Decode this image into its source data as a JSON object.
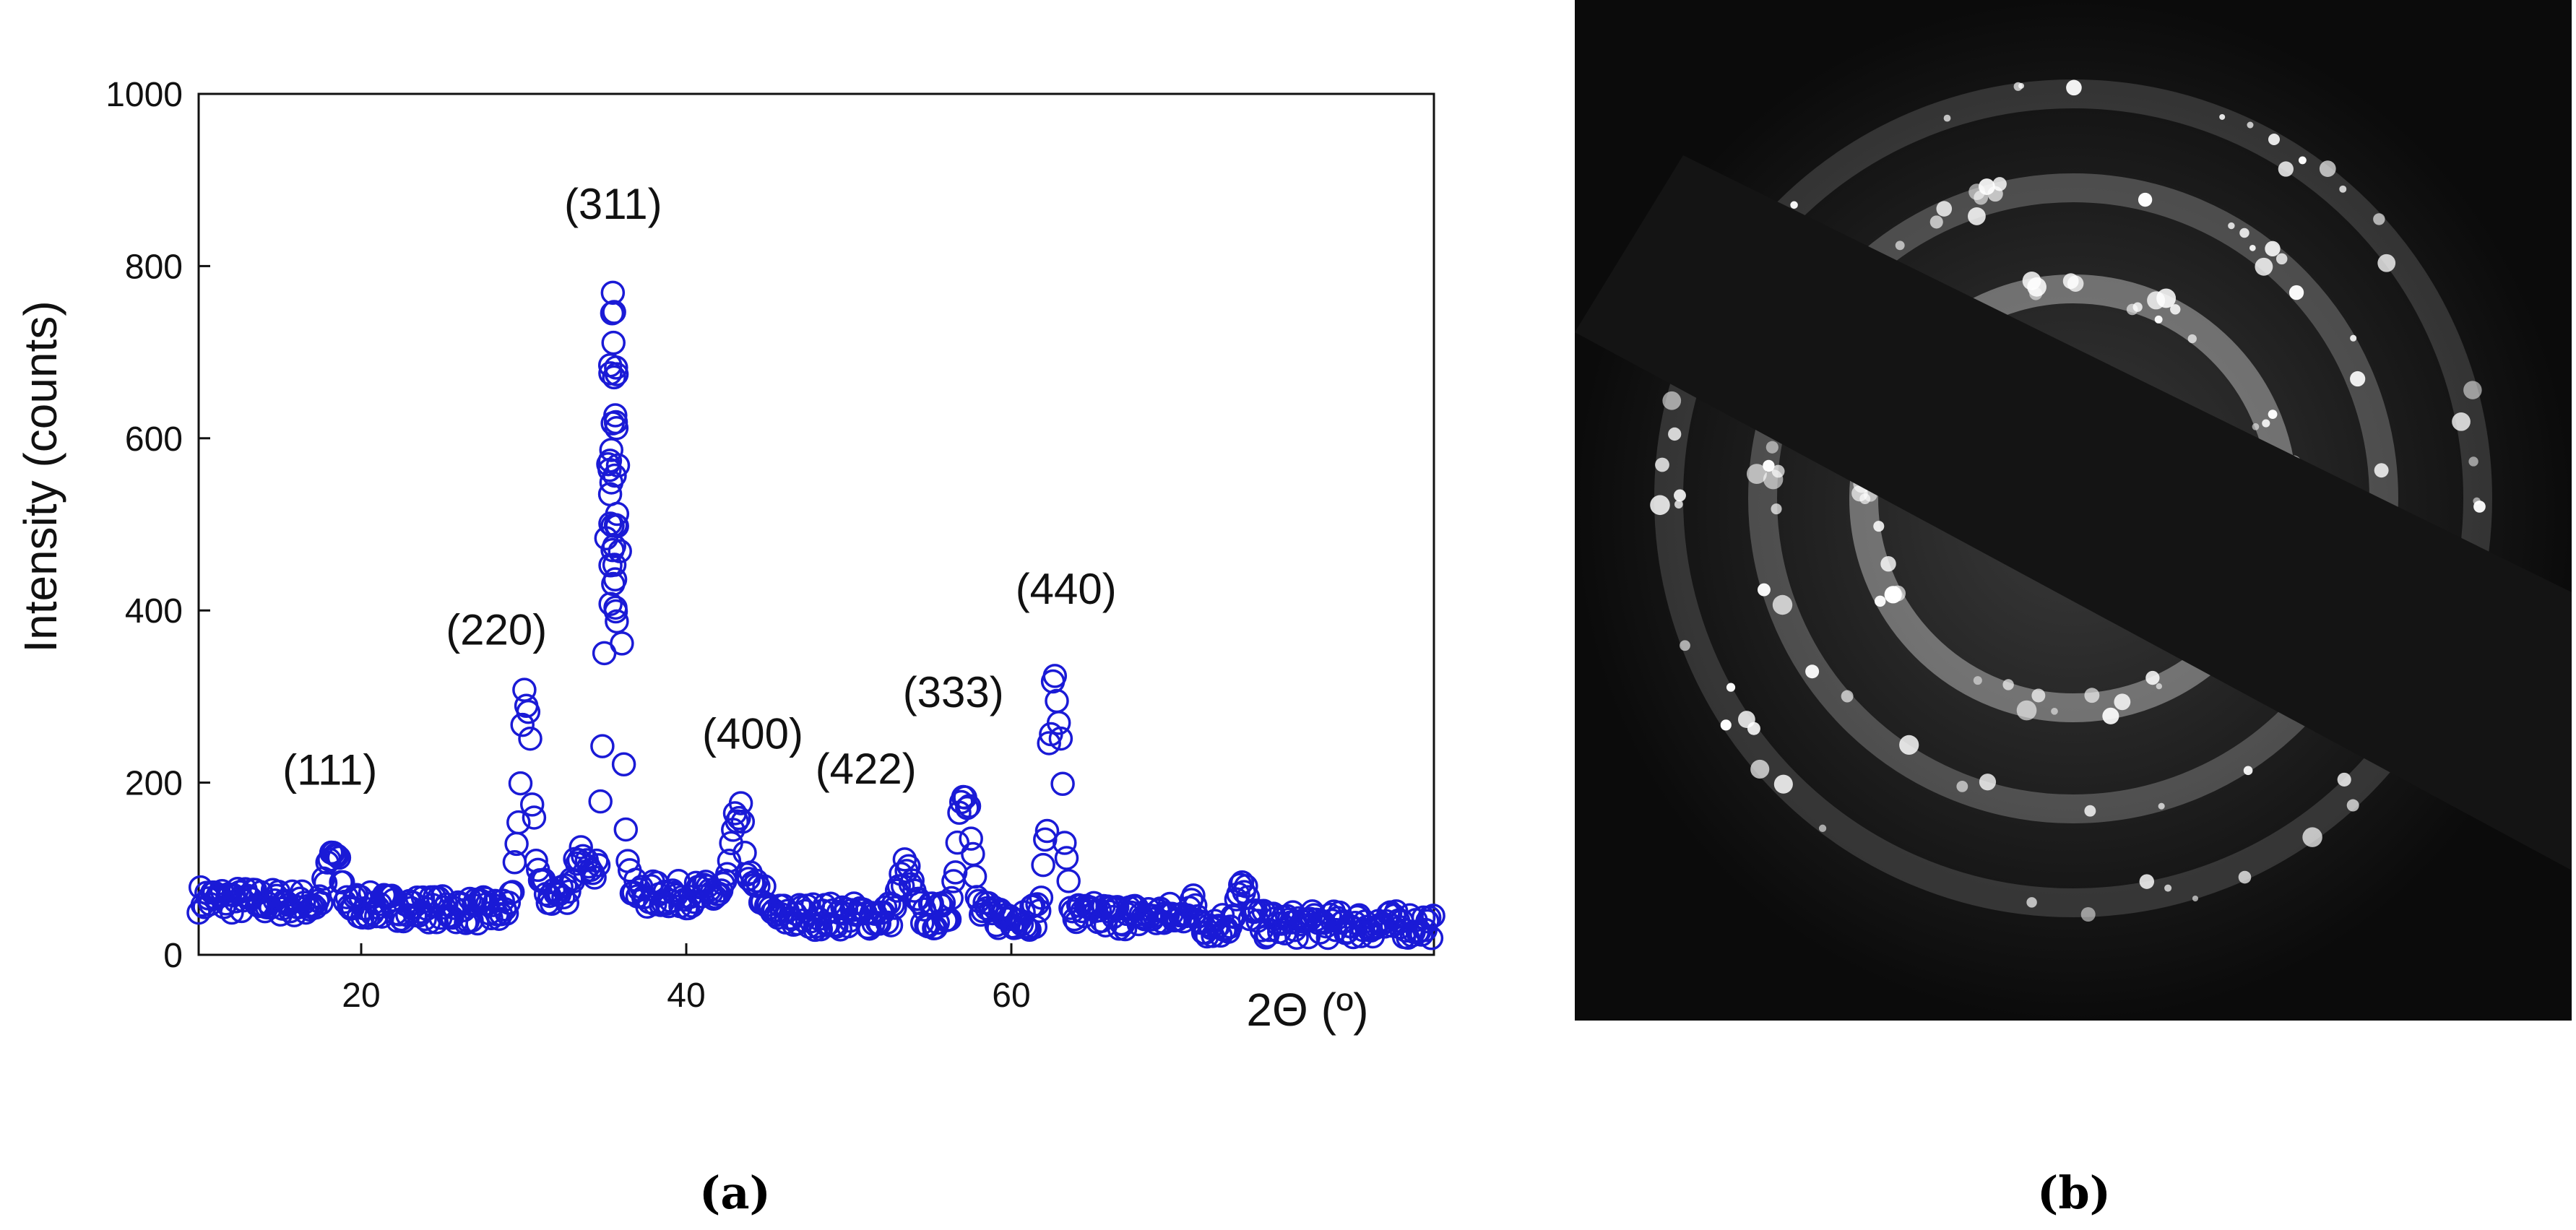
{
  "chart_data": {
    "type": "scatter",
    "ylabel": "Intensity (counts)",
    "xlabel": "2Θ (º)",
    "xlim": [
      10,
      86
    ],
    "ylim": [
      0,
      1000
    ],
    "xticks": [
      20,
      40,
      60
    ],
    "yticks": [
      0,
      200,
      400,
      600,
      800,
      1000
    ],
    "grid": false,
    "marker": "open-circle",
    "marker_color": "#1a1ad6",
    "peaks": [
      {
        "label": "(111)",
        "x": 18.3,
        "y": 118
      },
      {
        "label": "(220)",
        "x": 30.1,
        "y": 285
      },
      {
        "label": "(311)",
        "x": 35.5,
        "y": 775
      },
      {
        "label": "(400)",
        "x": 43.2,
        "y": 160
      },
      {
        "label": "(422)",
        "x": 53.5,
        "y": 98
      },
      {
        "label": "(333)",
        "x": 57.1,
        "y": 208
      },
      {
        "label": "(440)",
        "x": 62.7,
        "y": 328
      }
    ]
  },
  "captions": {
    "a": "(a)",
    "b": "(b)"
  },
  "panel_b": {
    "description_icon": "saed-diffraction-pattern"
  }
}
